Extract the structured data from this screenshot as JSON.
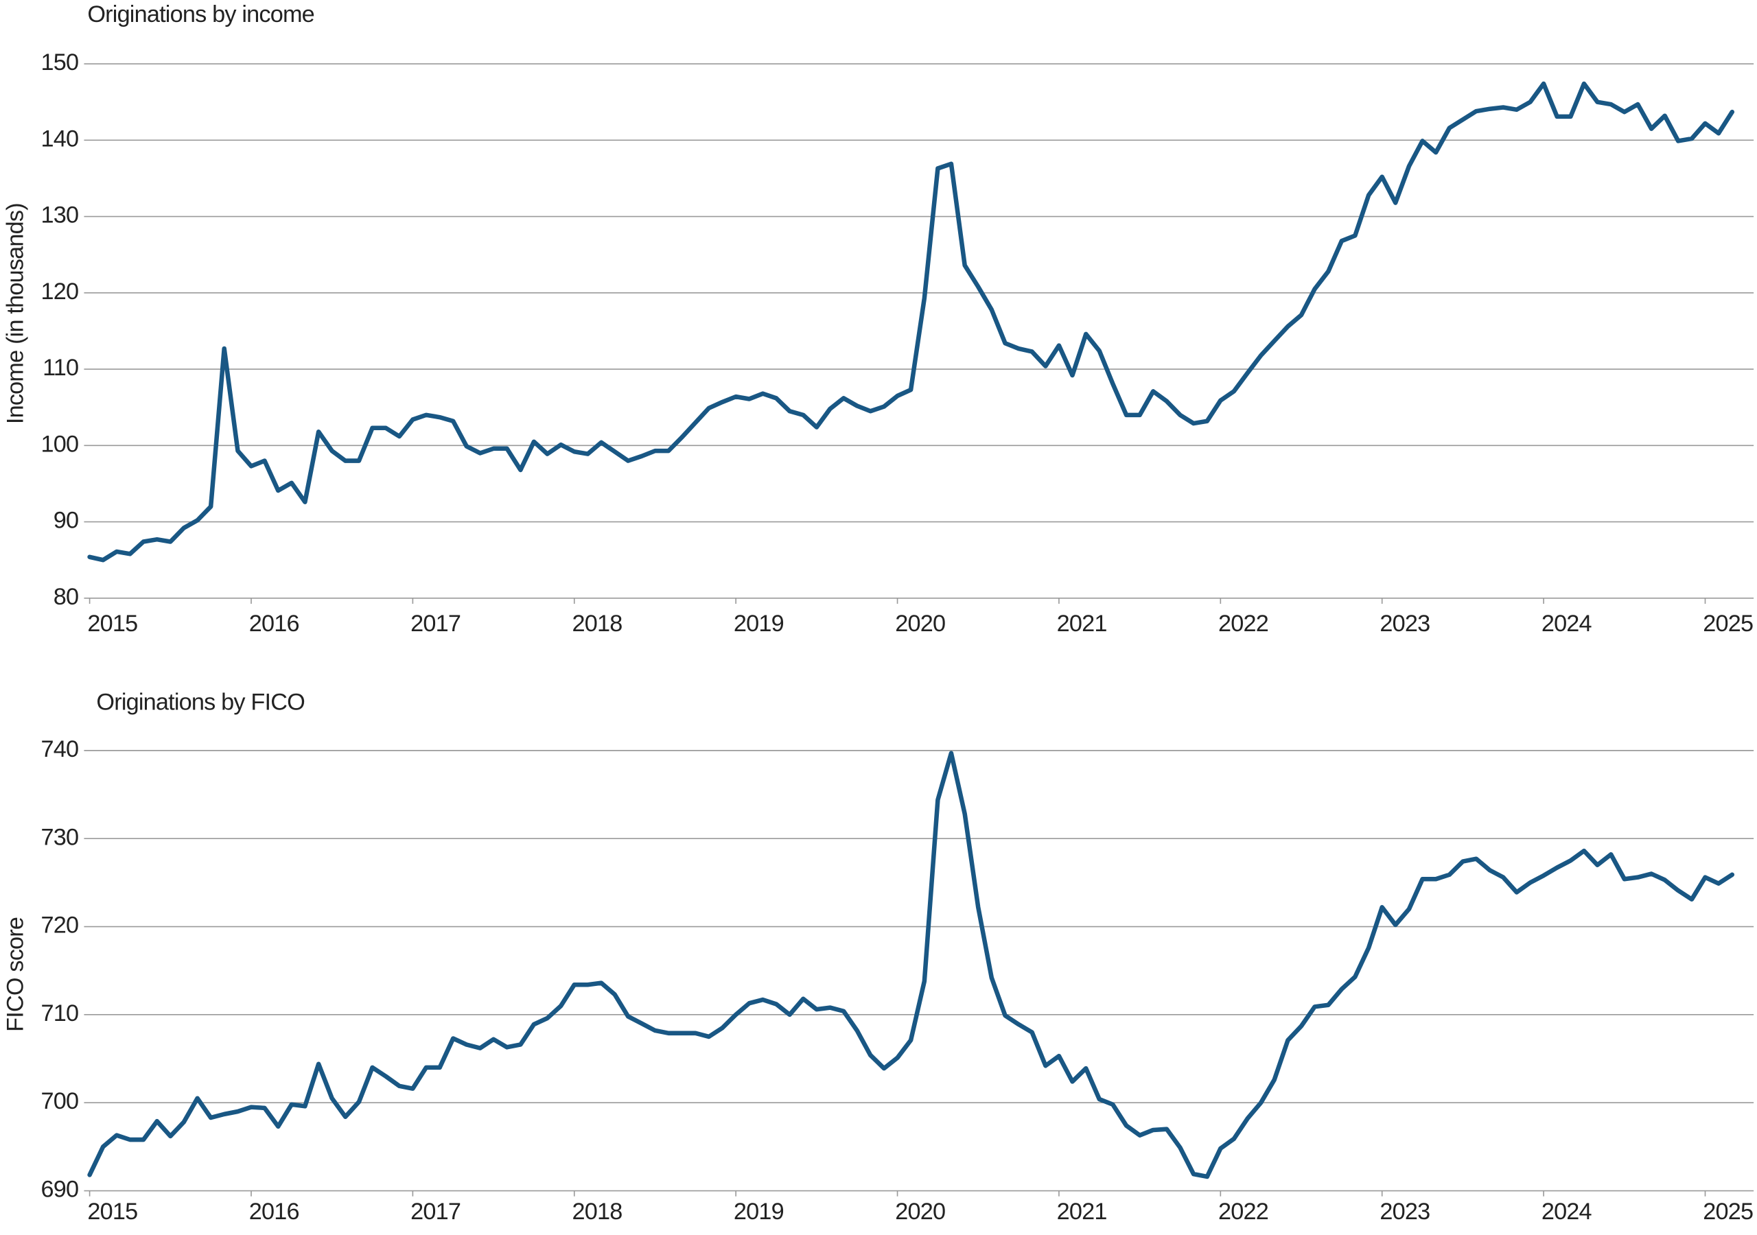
{
  "chart_data": [
    {
      "type": "line",
      "title": "Originations by income",
      "y_label": "Income (in thousands)",
      "color": "#195784",
      "grid": true,
      "xlim": [
        2015,
        2025.3
      ],
      "xticks": [
        2015,
        2016,
        2017,
        2018,
        2019,
        2020,
        2021,
        2022,
        2023,
        2024,
        2025
      ],
      "ylim": [
        80,
        150
      ],
      "yticks": [
        80,
        90,
        100,
        110,
        120,
        130,
        140,
        150
      ],
      "x": [
        2015,
        2015.083,
        2015.167,
        2015.25,
        2015.333,
        2015.417,
        2015.5,
        2015.583,
        2015.667,
        2015.75,
        2015.833,
        2015.917,
        2016,
        2016.083,
        2016.167,
        2016.25,
        2016.333,
        2016.417,
        2016.5,
        2016.583,
        2016.667,
        2016.75,
        2016.833,
        2016.917,
        2017,
        2017.083,
        2017.167,
        2017.25,
        2017.333,
        2017.417,
        2017.5,
        2017.583,
        2017.667,
        2017.75,
        2017.833,
        2017.917,
        2018,
        2018.083,
        2018.167,
        2018.25,
        2018.333,
        2018.417,
        2018.5,
        2018.583,
        2018.667,
        2018.75,
        2018.833,
        2018.917,
        2019,
        2019.083,
        2019.167,
        2019.25,
        2019.333,
        2019.417,
        2019.5,
        2019.583,
        2019.667,
        2019.75,
        2019.833,
        2019.917,
        2020,
        2020.083,
        2020.167,
        2020.25,
        2020.333,
        2020.417,
        2020.5,
        2020.583,
        2020.667,
        2020.75,
        2020.833,
        2020.917,
        2021,
        2021.083,
        2021.167,
        2021.25,
        2021.333,
        2021.417,
        2021.5,
        2021.583,
        2021.667,
        2021.75,
        2021.833,
        2021.917,
        2022,
        2022.083,
        2022.167,
        2022.25,
        2022.333,
        2022.417,
        2022.5,
        2022.583,
        2022.667,
        2022.75,
        2022.833,
        2022.917,
        2023,
        2023.083,
        2023.167,
        2023.25,
        2023.333,
        2023.417,
        2023.5,
        2023.583,
        2023.667,
        2023.75,
        2023.833,
        2023.917,
        2024,
        2024.083,
        2024.167,
        2024.25,
        2024.333,
        2024.417,
        2024.5,
        2024.583,
        2024.667,
        2024.75,
        2024.833,
        2024.917,
        2025,
        2025.083,
        2025.167
      ],
      "values": [
        85.4,
        85.0,
        86.1,
        85.8,
        87.4,
        87.7,
        87.4,
        89.2,
        90.2,
        92.0,
        112.7,
        99.3,
        97.3,
        98.0,
        94.1,
        95.1,
        92.6,
        101.8,
        99.3,
        98.0,
        98.0,
        102.3,
        102.3,
        101.2,
        103.4,
        104.0,
        103.7,
        103.2,
        99.9,
        99.0,
        99.6,
        99.6,
        96.8,
        100.5,
        98.9,
        100.1,
        99.2,
        98.9,
        100.4,
        99.2,
        98.0,
        98.6,
        99.3,
        99.3,
        101.1,
        103.0,
        104.9,
        105.7,
        106.4,
        106.1,
        106.8,
        106.2,
        104.5,
        104.0,
        102.4,
        104.8,
        106.2,
        105.2,
        104.5,
        105.1,
        106.5,
        107.3,
        119.3,
        136.3,
        136.9,
        123.6,
        120.8,
        117.8,
        113.4,
        112.7,
        112.3,
        110.4,
        113.1,
        109.2,
        114.6,
        112.4,
        108.1,
        104.0,
        104.0,
        107.1,
        105.8,
        104.0,
        102.9,
        103.2,
        105.9,
        107.1,
        109.5,
        111.8,
        113.7,
        115.6,
        117.1,
        120.5,
        122.8,
        126.8,
        127.5,
        132.8,
        135.2,
        131.8,
        136.6,
        139.9,
        138.4,
        141.6,
        142.7,
        143.8,
        144.1,
        144.3,
        144.0,
        145.0,
        147.4,
        143.1,
        143.1,
        147.4,
        145.0,
        144.7,
        143.7,
        144.7,
        141.5,
        143.2,
        139.9,
        140.2,
        142.2,
        140.9,
        143.7
      ]
    },
    {
      "type": "line",
      "title": "Originations by FICO",
      "y_label": "FICO score",
      "color": "#195784",
      "grid": true,
      "xlim": [
        2015,
        2025.3
      ],
      "xticks": [
        2015,
        2016,
        2017,
        2018,
        2019,
        2020,
        2021,
        2022,
        2023,
        2024,
        2025
      ],
      "ylim": [
        690,
        740
      ],
      "yticks": [
        690,
        700,
        710,
        720,
        730,
        740
      ],
      "x": [
        2015,
        2015.083,
        2015.167,
        2015.25,
        2015.333,
        2015.417,
        2015.5,
        2015.583,
        2015.667,
        2015.75,
        2015.833,
        2015.917,
        2016,
        2016.083,
        2016.167,
        2016.25,
        2016.333,
        2016.417,
        2016.5,
        2016.583,
        2016.667,
        2016.75,
        2016.833,
        2016.917,
        2017,
        2017.083,
        2017.167,
        2017.25,
        2017.333,
        2017.417,
        2017.5,
        2017.583,
        2017.667,
        2017.75,
        2017.833,
        2017.917,
        2018,
        2018.083,
        2018.167,
        2018.25,
        2018.333,
        2018.417,
        2018.5,
        2018.583,
        2018.667,
        2018.75,
        2018.833,
        2018.917,
        2019,
        2019.083,
        2019.167,
        2019.25,
        2019.333,
        2019.417,
        2019.5,
        2019.583,
        2019.667,
        2019.75,
        2019.833,
        2019.917,
        2020,
        2020.083,
        2020.167,
        2020.25,
        2020.333,
        2020.417,
        2020.5,
        2020.583,
        2020.667,
        2020.75,
        2020.833,
        2020.917,
        2021,
        2021.083,
        2021.167,
        2021.25,
        2021.333,
        2021.417,
        2021.5,
        2021.583,
        2021.667,
        2021.75,
        2021.833,
        2021.917,
        2022,
        2022.083,
        2022.167,
        2022.25,
        2022.333,
        2022.417,
        2022.5,
        2022.583,
        2022.667,
        2022.75,
        2022.833,
        2022.917,
        2023,
        2023.083,
        2023.167,
        2023.25,
        2023.333,
        2023.417,
        2023.5,
        2023.583,
        2023.667,
        2023.75,
        2023.833,
        2023.917,
        2024,
        2024.083,
        2024.167,
        2024.25,
        2024.333,
        2024.417,
        2024.5,
        2024.583,
        2024.667,
        2024.75,
        2024.833,
        2024.917,
        2025,
        2025.083,
        2025.167
      ],
      "values": [
        691.8,
        695.0,
        696.3,
        695.8,
        695.8,
        697.9,
        696.2,
        697.8,
        700.5,
        698.3,
        698.7,
        699.0,
        699.5,
        699.4,
        697.3,
        699.8,
        699.6,
        704.4,
        700.5,
        698.4,
        700.1,
        704.0,
        703.0,
        701.9,
        701.6,
        704.0,
        704.0,
        707.3,
        706.6,
        706.2,
        707.2,
        706.3,
        706.6,
        708.9,
        709.6,
        711.0,
        713.4,
        713.4,
        713.6,
        712.3,
        709.8,
        709.0,
        708.2,
        707.9,
        707.9,
        707.9,
        707.5,
        708.5,
        710.0,
        711.3,
        711.7,
        711.2,
        710.0,
        711.8,
        710.6,
        710.8,
        710.4,
        708.2,
        705.4,
        703.9,
        705.1,
        707.1,
        713.8,
        734.4,
        739.7,
        732.8,
        722.2,
        714.2,
        709.9,
        708.9,
        708.0,
        704.2,
        705.3,
        702.4,
        703.9,
        700.4,
        699.8,
        697.4,
        696.3,
        696.9,
        697.0,
        694.9,
        691.9,
        691.6,
        694.8,
        695.9,
        698.2,
        700.0,
        702.6,
        707.1,
        708.7,
        710.9,
        711.1,
        712.9,
        714.3,
        717.6,
        722.2,
        720.2,
        722.0,
        725.4,
        725.4,
        725.9,
        727.4,
        727.7,
        726.4,
        725.6,
        723.9,
        725.0,
        725.8,
        726.7,
        727.5,
        728.6,
        727.0,
        728.2,
        725.4,
        725.6,
        726.0,
        725.3,
        724.1,
        723.1,
        725.6,
        724.9,
        725.9
      ]
    }
  ]
}
